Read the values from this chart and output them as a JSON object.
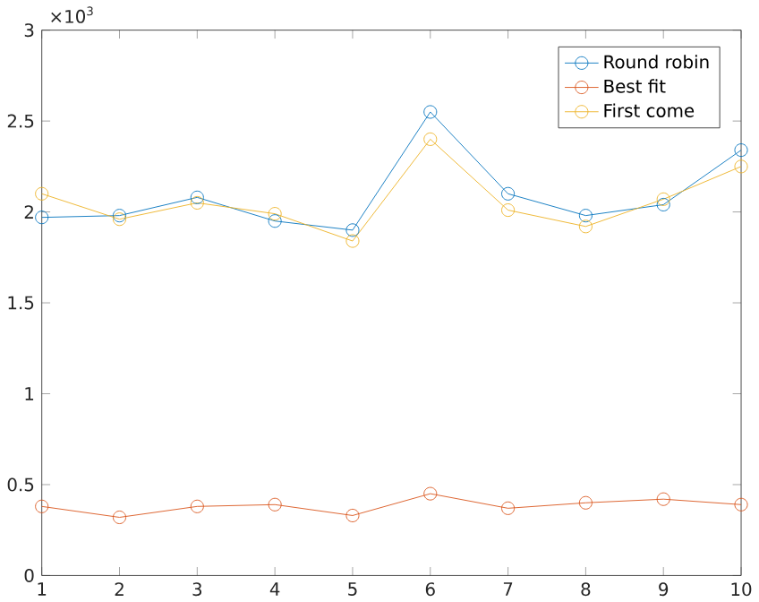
{
  "chart_data": {
    "type": "line",
    "x": [
      1,
      2,
      3,
      4,
      5,
      6,
      7,
      8,
      9,
      10
    ],
    "series": [
      {
        "name": "Round robin",
        "color": "#0072bd",
        "values": [
          1.97,
          1.98,
          2.08,
          1.95,
          1.9,
          2.55,
          2.1,
          1.98,
          2.04,
          2.34
        ]
      },
      {
        "name": "Best fit",
        "color": "#d95319",
        "values": [
          0.38,
          0.32,
          0.38,
          0.39,
          0.33,
          0.45,
          0.37,
          0.4,
          0.42,
          0.39
        ]
      },
      {
        "name": "First come",
        "color": "#edb120",
        "values": [
          2.1,
          1.96,
          2.05,
          1.99,
          1.84,
          2.4,
          2.01,
          1.92,
          2.07,
          2.25
        ]
      }
    ],
    "xlim": [
      1,
      10
    ],
    "xticks": [
      1,
      2,
      3,
      4,
      5,
      6,
      7,
      8,
      9,
      10
    ],
    "ylim": [
      0,
      3
    ],
    "yticks": [
      0,
      0.5,
      1,
      1.5,
      2,
      2.5,
      3
    ],
    "annotations": [
      "×10$^{3}$"
    ],
    "marker": "circle",
    "line_style": "solid",
    "legend": "top right",
    "grid": false
  }
}
